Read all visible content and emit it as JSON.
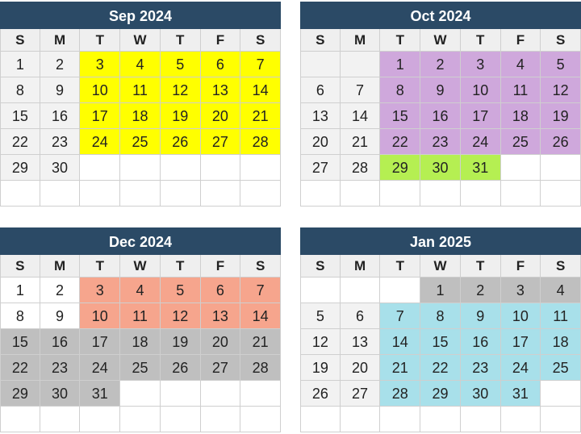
{
  "weekday_labels": [
    "S",
    "M",
    "T",
    "W",
    "T",
    "F",
    "S"
  ],
  "colors": {
    "header": "#2b4a66",
    "weekend": "#f2f2f2",
    "yellow": "#ffff00",
    "purple": "#cfa8dc",
    "green": "#b5ef52",
    "salmon": "#f6a58d",
    "gray": "#bfbfbf",
    "cyan": "#a8e0ea"
  },
  "calendars": [
    {
      "title": "Sep 2024",
      "rows": [
        [
          {
            "d": "1",
            "s": "wknd"
          },
          {
            "d": "2",
            "s": "wknd"
          },
          {
            "d": "3",
            "s": "yellow"
          },
          {
            "d": "4",
            "s": "yellow"
          },
          {
            "d": "5",
            "s": "yellow"
          },
          {
            "d": "6",
            "s": "yellow"
          },
          {
            "d": "7",
            "s": "yellow"
          }
        ],
        [
          {
            "d": "8",
            "s": "wknd"
          },
          {
            "d": "9",
            "s": "wknd"
          },
          {
            "d": "10",
            "s": "yellow"
          },
          {
            "d": "11",
            "s": "yellow"
          },
          {
            "d": "12",
            "s": "yellow"
          },
          {
            "d": "13",
            "s": "yellow"
          },
          {
            "d": "14",
            "s": "yellow"
          }
        ],
        [
          {
            "d": "15",
            "s": "wknd"
          },
          {
            "d": "16",
            "s": "wknd"
          },
          {
            "d": "17",
            "s": "yellow"
          },
          {
            "d": "18",
            "s": "yellow"
          },
          {
            "d": "19",
            "s": "yellow"
          },
          {
            "d": "20",
            "s": "yellow"
          },
          {
            "d": "21",
            "s": "yellow"
          }
        ],
        [
          {
            "d": "22",
            "s": "wknd"
          },
          {
            "d": "23",
            "s": "wknd"
          },
          {
            "d": "24",
            "s": "yellow"
          },
          {
            "d": "25",
            "s": "yellow"
          },
          {
            "d": "26",
            "s": "yellow"
          },
          {
            "d": "27",
            "s": "yellow"
          },
          {
            "d": "28",
            "s": "yellow"
          }
        ],
        [
          {
            "d": "29",
            "s": "wknd"
          },
          {
            "d": "30",
            "s": "wknd"
          },
          {
            "d": "",
            "s": "none"
          },
          {
            "d": "",
            "s": "none"
          },
          {
            "d": "",
            "s": "none"
          },
          {
            "d": "",
            "s": "none"
          },
          {
            "d": "",
            "s": "none"
          }
        ],
        [
          {
            "d": "",
            "s": "none"
          },
          {
            "d": "",
            "s": "none"
          },
          {
            "d": "",
            "s": "none"
          },
          {
            "d": "",
            "s": "none"
          },
          {
            "d": "",
            "s": "none"
          },
          {
            "d": "",
            "s": "none"
          },
          {
            "d": "",
            "s": "none"
          }
        ]
      ]
    },
    {
      "title": "Oct 2024",
      "rows": [
        [
          {
            "d": "",
            "s": "wknd"
          },
          {
            "d": "",
            "s": "wknd"
          },
          {
            "d": "1",
            "s": "purple"
          },
          {
            "d": "2",
            "s": "purple"
          },
          {
            "d": "3",
            "s": "purple"
          },
          {
            "d": "4",
            "s": "purple"
          },
          {
            "d": "5",
            "s": "purple"
          }
        ],
        [
          {
            "d": "6",
            "s": "wknd"
          },
          {
            "d": "7",
            "s": "wknd"
          },
          {
            "d": "8",
            "s": "purple"
          },
          {
            "d": "9",
            "s": "purple"
          },
          {
            "d": "10",
            "s": "purple"
          },
          {
            "d": "11",
            "s": "purple"
          },
          {
            "d": "12",
            "s": "purple"
          }
        ],
        [
          {
            "d": "13",
            "s": "wknd"
          },
          {
            "d": "14",
            "s": "wknd"
          },
          {
            "d": "15",
            "s": "purple"
          },
          {
            "d": "16",
            "s": "purple"
          },
          {
            "d": "17",
            "s": "purple"
          },
          {
            "d": "18",
            "s": "purple"
          },
          {
            "d": "19",
            "s": "purple"
          }
        ],
        [
          {
            "d": "20",
            "s": "wknd"
          },
          {
            "d": "21",
            "s": "wknd"
          },
          {
            "d": "22",
            "s": "purple"
          },
          {
            "d": "23",
            "s": "purple"
          },
          {
            "d": "24",
            "s": "purple"
          },
          {
            "d": "25",
            "s": "purple"
          },
          {
            "d": "26",
            "s": "purple"
          }
        ],
        [
          {
            "d": "27",
            "s": "wknd"
          },
          {
            "d": "28",
            "s": "wknd"
          },
          {
            "d": "29",
            "s": "green"
          },
          {
            "d": "30",
            "s": "green"
          },
          {
            "d": "31",
            "s": "green"
          },
          {
            "d": "",
            "s": "none"
          },
          {
            "d": "",
            "s": "none"
          }
        ],
        [
          {
            "d": "",
            "s": "none"
          },
          {
            "d": "",
            "s": "none"
          },
          {
            "d": "",
            "s": "none"
          },
          {
            "d": "",
            "s": "none"
          },
          {
            "d": "",
            "s": "none"
          },
          {
            "d": "",
            "s": "none"
          },
          {
            "d": "",
            "s": "none"
          }
        ]
      ]
    },
    {
      "title": "Dec 2024",
      "rows": [
        [
          {
            "d": "1",
            "s": "none"
          },
          {
            "d": "2",
            "s": "none"
          },
          {
            "d": "3",
            "s": "salmon"
          },
          {
            "d": "4",
            "s": "salmon"
          },
          {
            "d": "5",
            "s": "salmon"
          },
          {
            "d": "6",
            "s": "salmon"
          },
          {
            "d": "7",
            "s": "salmon"
          }
        ],
        [
          {
            "d": "8",
            "s": "none"
          },
          {
            "d": "9",
            "s": "none"
          },
          {
            "d": "10",
            "s": "salmon"
          },
          {
            "d": "11",
            "s": "salmon"
          },
          {
            "d": "12",
            "s": "salmon"
          },
          {
            "d": "13",
            "s": "salmon"
          },
          {
            "d": "14",
            "s": "salmon"
          }
        ],
        [
          {
            "d": "15",
            "s": "gray"
          },
          {
            "d": "16",
            "s": "gray"
          },
          {
            "d": "17",
            "s": "gray"
          },
          {
            "d": "18",
            "s": "gray"
          },
          {
            "d": "19",
            "s": "gray"
          },
          {
            "d": "20",
            "s": "gray"
          },
          {
            "d": "21",
            "s": "gray"
          }
        ],
        [
          {
            "d": "22",
            "s": "gray"
          },
          {
            "d": "23",
            "s": "gray"
          },
          {
            "d": "24",
            "s": "gray"
          },
          {
            "d": "25",
            "s": "gray"
          },
          {
            "d": "26",
            "s": "gray"
          },
          {
            "d": "27",
            "s": "gray"
          },
          {
            "d": "28",
            "s": "gray"
          }
        ],
        [
          {
            "d": "29",
            "s": "gray"
          },
          {
            "d": "30",
            "s": "gray"
          },
          {
            "d": "31",
            "s": "gray"
          },
          {
            "d": "",
            "s": "none"
          },
          {
            "d": "",
            "s": "none"
          },
          {
            "d": "",
            "s": "none"
          },
          {
            "d": "",
            "s": "none"
          }
        ],
        [
          {
            "d": "",
            "s": "none"
          },
          {
            "d": "",
            "s": "none"
          },
          {
            "d": "",
            "s": "none"
          },
          {
            "d": "",
            "s": "none"
          },
          {
            "d": "",
            "s": "none"
          },
          {
            "d": "",
            "s": "none"
          },
          {
            "d": "",
            "s": "none"
          }
        ]
      ]
    },
    {
      "title": "Jan 2025",
      "rows": [
        [
          {
            "d": "",
            "s": "none"
          },
          {
            "d": "",
            "s": "none"
          },
          {
            "d": "",
            "s": "none"
          },
          {
            "d": "1",
            "s": "gray"
          },
          {
            "d": "2",
            "s": "gray"
          },
          {
            "d": "3",
            "s": "gray"
          },
          {
            "d": "4",
            "s": "gray"
          }
        ],
        [
          {
            "d": "5",
            "s": "wknd"
          },
          {
            "d": "6",
            "s": "wknd"
          },
          {
            "d": "7",
            "s": "cyan"
          },
          {
            "d": "8",
            "s": "cyan"
          },
          {
            "d": "9",
            "s": "cyan"
          },
          {
            "d": "10",
            "s": "cyan"
          },
          {
            "d": "11",
            "s": "cyan"
          }
        ],
        [
          {
            "d": "12",
            "s": "wknd"
          },
          {
            "d": "13",
            "s": "wknd"
          },
          {
            "d": "14",
            "s": "cyan"
          },
          {
            "d": "15",
            "s": "cyan"
          },
          {
            "d": "16",
            "s": "cyan"
          },
          {
            "d": "17",
            "s": "cyan"
          },
          {
            "d": "18",
            "s": "cyan"
          }
        ],
        [
          {
            "d": "19",
            "s": "wknd"
          },
          {
            "d": "20",
            "s": "wknd"
          },
          {
            "d": "21",
            "s": "cyan"
          },
          {
            "d": "22",
            "s": "cyan"
          },
          {
            "d": "23",
            "s": "cyan"
          },
          {
            "d": "24",
            "s": "cyan"
          },
          {
            "d": "25",
            "s": "cyan"
          }
        ],
        [
          {
            "d": "26",
            "s": "wknd"
          },
          {
            "d": "27",
            "s": "wknd"
          },
          {
            "d": "28",
            "s": "cyan"
          },
          {
            "d": "29",
            "s": "cyan"
          },
          {
            "d": "30",
            "s": "cyan"
          },
          {
            "d": "31",
            "s": "cyan"
          },
          {
            "d": "",
            "s": "none"
          }
        ],
        [
          {
            "d": "",
            "s": "none"
          },
          {
            "d": "",
            "s": "none"
          },
          {
            "d": "",
            "s": "none"
          },
          {
            "d": "",
            "s": "none"
          },
          {
            "d": "",
            "s": "none"
          },
          {
            "d": "",
            "s": "none"
          },
          {
            "d": "",
            "s": "none"
          }
        ]
      ]
    }
  ]
}
